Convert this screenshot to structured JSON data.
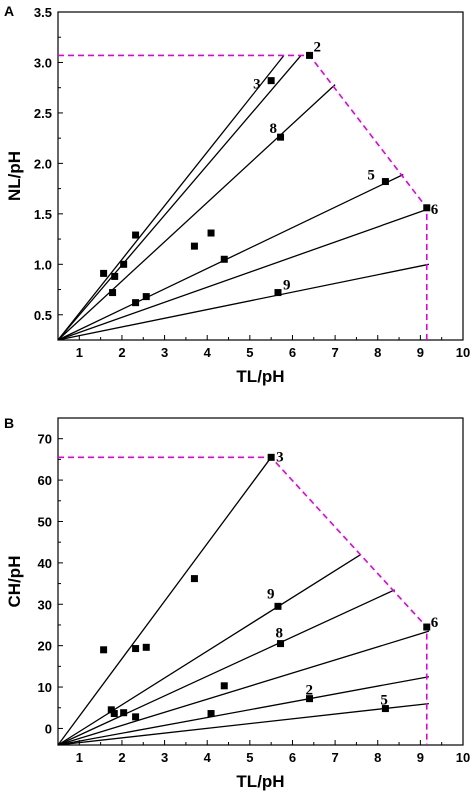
{
  "chart_data": [
    {
      "type": "scatter",
      "panel_label": "A",
      "xlabel": "TL/pH",
      "ylabel": "NL/pH",
      "xlim": [
        0.5,
        10
      ],
      "ylim": [
        0.25,
        3.5
      ],
      "xticks": [
        1,
        2,
        3,
        4,
        5,
        6,
        7,
        8,
        9,
        10
      ],
      "xtick_labels": [
        "1",
        "2",
        "3",
        "4",
        "5",
        "6",
        "7",
        "8",
        "9",
        "10"
      ],
      "yticks": [
        0.5,
        1.0,
        1.5,
        2.0,
        2.5,
        3.0,
        3.5
      ],
      "ytick_labels": [
        "0.5",
        "1.0",
        "1.5",
        "2.0",
        "2.5",
        "3.0",
        "3.5"
      ],
      "points": [
        {
          "x": 1.57,
          "y": 0.91,
          "label": ""
        },
        {
          "x": 1.78,
          "y": 0.72,
          "label": ""
        },
        {
          "x": 1.83,
          "y": 0.88,
          "label": ""
        },
        {
          "x": 2.04,
          "y": 1.0,
          "label": ""
        },
        {
          "x": 2.32,
          "y": 1.29,
          "label": ""
        },
        {
          "x": 2.32,
          "y": 0.62,
          "label": ""
        },
        {
          "x": 2.57,
          "y": 0.68,
          "label": ""
        },
        {
          "x": 3.7,
          "y": 1.18,
          "label": ""
        },
        {
          "x": 4.09,
          "y": 1.31,
          "label": ""
        },
        {
          "x": 4.4,
          "y": 1.05,
          "label": ""
        },
        {
          "x": 5.5,
          "y": 2.82,
          "label": "3"
        },
        {
          "x": 6.4,
          "y": 3.07,
          "label": "2"
        },
        {
          "x": 5.72,
          "y": 2.26,
          "label": "8"
        },
        {
          "x": 8.18,
          "y": 1.82,
          "label": "5"
        },
        {
          "x": 9.15,
          "y": 1.56,
          "label": "6"
        },
        {
          "x": 5.66,
          "y": 0.72,
          "label": "9"
        }
      ],
      "lines": [
        {
          "x": [
            0.5,
            5.8
          ],
          "y": [
            0.25,
            3.07
          ]
        },
        {
          "x": [
            0.5,
            6.2
          ],
          "y": [
            0.25,
            3.07
          ]
        },
        {
          "x": [
            0.5,
            7.0
          ],
          "y": [
            0.25,
            2.78
          ]
        },
        {
          "x": [
            0.5,
            8.6
          ],
          "y": [
            0.25,
            1.89
          ]
        },
        {
          "x": [
            0.5,
            9.2
          ],
          "y": [
            0.25,
            1.55
          ]
        },
        {
          "x": [
            0.5,
            9.2
          ],
          "y": [
            0.25,
            1.0
          ]
        }
      ],
      "guides": [
        {
          "x": [
            0.5,
            6.4,
            9.15,
            9.15
          ],
          "y": [
            3.07,
            3.07,
            1.56,
            0.25
          ]
        }
      ]
    },
    {
      "type": "scatter",
      "panel_label": "B",
      "xlabel": "TL/pH",
      "ylabel": "CH/pH",
      "xlim": [
        0.5,
        10
      ],
      "ylim": [
        -4,
        75
      ],
      "xticks": [
        1,
        2,
        3,
        4,
        5,
        6,
        7,
        8,
        9,
        10
      ],
      "xtick_labels": [
        "1",
        "2",
        "3",
        "4",
        "5",
        "6",
        "7",
        "8",
        "9",
        "10"
      ],
      "yticks": [
        0,
        10,
        20,
        30,
        40,
        50,
        60,
        70
      ],
      "ytick_labels": [
        "0",
        "10",
        "20",
        "30",
        "40",
        "50",
        "60",
        "70"
      ],
      "points": [
        {
          "x": 1.57,
          "y": 19.0,
          "label": ""
        },
        {
          "x": 1.75,
          "y": 4.5,
          "label": ""
        },
        {
          "x": 1.82,
          "y": 3.6,
          "label": ""
        },
        {
          "x": 2.04,
          "y": 3.8,
          "label": ""
        },
        {
          "x": 2.32,
          "y": 19.3,
          "label": ""
        },
        {
          "x": 2.32,
          "y": 2.8,
          "label": ""
        },
        {
          "x": 2.57,
          "y": 19.6,
          "label": ""
        },
        {
          "x": 3.7,
          "y": 36.2,
          "label": ""
        },
        {
          "x": 4.09,
          "y": 3.6,
          "label": ""
        },
        {
          "x": 4.4,
          "y": 10.3,
          "label": ""
        },
        {
          "x": 5.5,
          "y": 65.5,
          "label": "3"
        },
        {
          "x": 5.66,
          "y": 29.5,
          "label": "9"
        },
        {
          "x": 5.72,
          "y": 20.5,
          "label": "8"
        },
        {
          "x": 6.4,
          "y": 7.2,
          "label": "2"
        },
        {
          "x": 8.18,
          "y": 4.8,
          "label": "5"
        },
        {
          "x": 9.15,
          "y": 24.5,
          "label": "6"
        }
      ],
      "lines": [
        {
          "x": [
            0.5,
            5.5
          ],
          "y": [
            -4,
            65.5
          ]
        },
        {
          "x": [
            0.5,
            7.6
          ],
          "y": [
            -4,
            42
          ]
        },
        {
          "x": [
            0.5,
            8.4
          ],
          "y": [
            -4,
            33.5
          ]
        },
        {
          "x": [
            0.5,
            9.2
          ],
          "y": [
            -4,
            23.5
          ]
        },
        {
          "x": [
            0.5,
            9.2
          ],
          "y": [
            -4,
            12.5
          ]
        },
        {
          "x": [
            0.5,
            9.2
          ],
          "y": [
            -4,
            6.0
          ]
        }
      ],
      "guides": [
        {
          "x": [
            0.5,
            5.5,
            9.15,
            9.15
          ],
          "y": [
            65.5,
            65.5,
            24.5,
            -4
          ]
        }
      ]
    }
  ]
}
